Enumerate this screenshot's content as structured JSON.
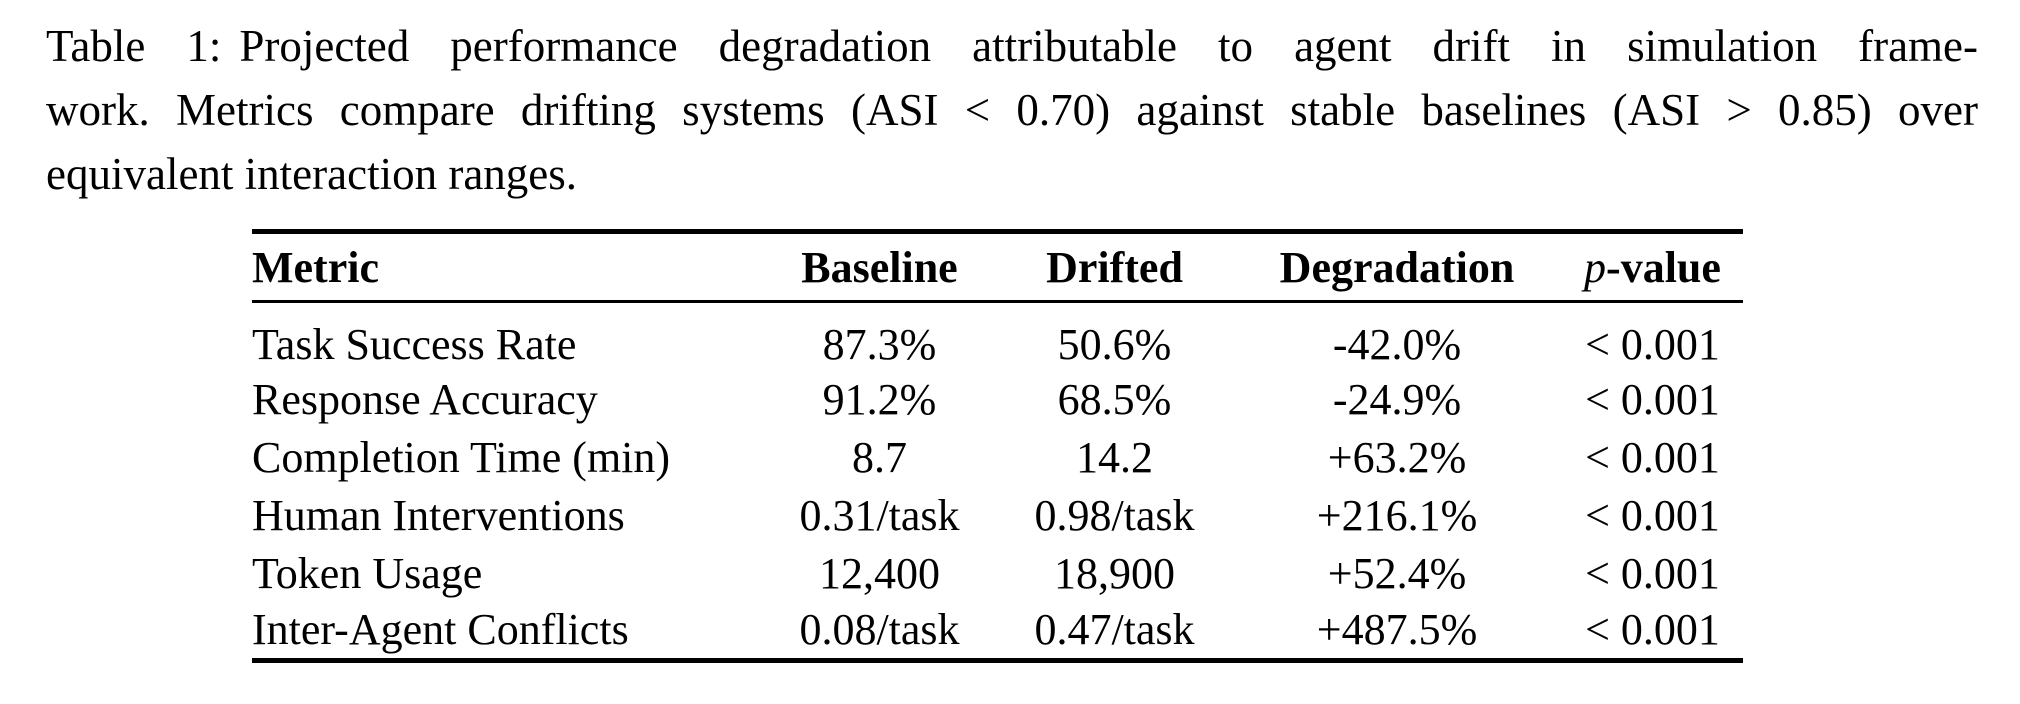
{
  "caption": {
    "label": "Table 1:",
    "line1_rest": "Projected performance degradation attributable to agent drift in simulation frame-",
    "line2": "work. Metrics compare drifting systems (ASI < 0.70) against stable baselines (ASI > 0.85) over",
    "line3": "equivalent interaction ranges."
  },
  "table": {
    "columns": [
      "Metric",
      "Baseline",
      "Drifted",
      "Degradation"
    ],
    "p_header": {
      "italic": "p",
      "rest": "-value"
    },
    "rows": [
      {
        "metric": "Task Success Rate",
        "baseline": "87.3%",
        "drifted": "50.6%",
        "degradation": "-42.0%",
        "p_value": "< 0.001"
      },
      {
        "metric": "Response Accuracy",
        "baseline": "91.2%",
        "drifted": "68.5%",
        "degradation": "-24.9%",
        "p_value": "< 0.001"
      },
      {
        "metric": "Completion Time (min)",
        "baseline": "8.7",
        "drifted": "14.2",
        "degradation": "+63.2%",
        "p_value": "< 0.001"
      },
      {
        "metric": "Human Interventions",
        "baseline": "0.31/task",
        "drifted": "0.98/task",
        "degradation": "+216.1%",
        "p_value": "< 0.001"
      },
      {
        "metric": "Token Usage",
        "baseline": "12,400",
        "drifted": "18,900",
        "degradation": "+52.4%",
        "p_value": "< 0.001"
      },
      {
        "metric": "Inter-Agent Conflicts",
        "baseline": "0.08/task",
        "drifted": "0.47/task",
        "degradation": "+487.5%",
        "p_value": "< 0.001"
      }
    ]
  }
}
